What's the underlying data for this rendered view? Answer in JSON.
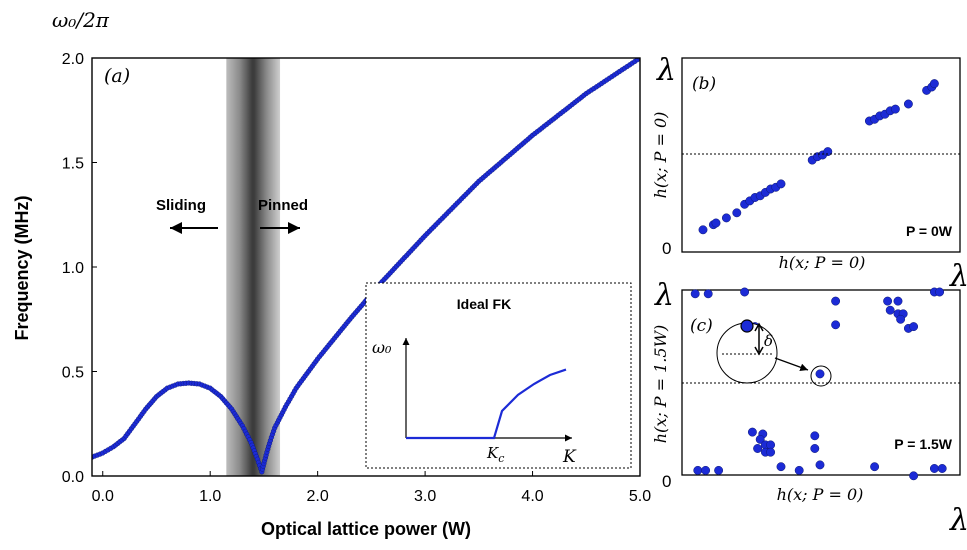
{
  "colors": {
    "data": "#1c2bd6",
    "data_edge": "#0d1870",
    "band_dark": "#3c3c3c",
    "band_light": "#bdbdbd",
    "axis": "#000000"
  },
  "chart_data": [
    {
      "panel": "a",
      "type": "scatter",
      "panel_label": "(a)",
      "xlabel": "Optical lattice power (W)",
      "ylabel": "Frequency (MHz)",
      "ylabel_top": "ω₀/2π",
      "xlim": [
        -0.1,
        5.0
      ],
      "ylim": [
        0.0,
        2.0
      ],
      "xticks": [
        0.0,
        1.0,
        2.0,
        3.0,
        4.0,
        5.0
      ],
      "xtick_labels": [
        "0.0",
        "1.0",
        "2.0",
        "3.0",
        "4.0",
        "5.0"
      ],
      "yticks": [
        0.0,
        0.5,
        1.0,
        1.5,
        2.0
      ],
      "ytick_labels": [
        "0.0",
        "0.5",
        "1.0",
        "1.5",
        "2.0"
      ],
      "grid": false,
      "shaded_band": {
        "x_range": [
          1.15,
          1.65
        ],
        "center": 1.42
      },
      "annotations": {
        "sliding": "Sliding",
        "pinned": "Pinned"
      },
      "curve_points": [
        [
          -0.1,
          0.09
        ],
        [
          0.0,
          0.11
        ],
        [
          0.1,
          0.14
        ],
        [
          0.2,
          0.18
        ],
        [
          0.3,
          0.25
        ],
        [
          0.4,
          0.32
        ],
        [
          0.5,
          0.38
        ],
        [
          0.6,
          0.42
        ],
        [
          0.7,
          0.44
        ],
        [
          0.8,
          0.445
        ],
        [
          0.9,
          0.44
        ],
        [
          1.0,
          0.42
        ],
        [
          1.1,
          0.38
        ],
        [
          1.2,
          0.32
        ],
        [
          1.3,
          0.24
        ],
        [
          1.38,
          0.16
        ],
        [
          1.44,
          0.08
        ],
        [
          1.48,
          0.02
        ],
        [
          1.52,
          0.1
        ],
        [
          1.56,
          0.17
        ],
        [
          1.6,
          0.23
        ],
        [
          1.7,
          0.33
        ],
        [
          1.8,
          0.42
        ],
        [
          2.0,
          0.56
        ],
        [
          2.3,
          0.75
        ],
        [
          2.6,
          0.93
        ],
        [
          3.0,
          1.15
        ],
        [
          3.5,
          1.41
        ],
        [
          4.0,
          1.63
        ],
        [
          4.5,
          1.83
        ],
        [
          5.0,
          2.0
        ]
      ],
      "inset": {
        "title": "Ideal FK",
        "ylabel": "ω₀",
        "xlabel": "K",
        "critical_label": "K_c",
        "kc": 0.55,
        "curve": [
          [
            0.0,
            0.0
          ],
          [
            0.55,
            0.0
          ],
          [
            0.6,
            0.3
          ],
          [
            0.7,
            0.48
          ],
          [
            0.8,
            0.6
          ],
          [
            0.9,
            0.7
          ],
          [
            1.0,
            0.76
          ]
        ]
      }
    },
    {
      "panel": "b",
      "type": "scatter",
      "panel_label": "(b)",
      "xlabel": "h(x; P = 0)",
      "ylabel": "h(x; P = 0)",
      "axis_end_label": "λ",
      "y_tick_zero": "0",
      "power_label": "P = 0W",
      "xlim": [
        0,
        1
      ],
      "ylim": [
        0,
        1
      ],
      "dashed_line_y": 0.5,
      "points": [
        [
          0.05,
          0.06
        ],
        [
          0.09,
          0.09
        ],
        [
          0.1,
          0.1
        ],
        [
          0.14,
          0.13
        ],
        [
          0.18,
          0.16
        ],
        [
          0.21,
          0.21
        ],
        [
          0.23,
          0.23
        ],
        [
          0.25,
          0.25
        ],
        [
          0.27,
          0.26
        ],
        [
          0.29,
          0.28
        ],
        [
          0.31,
          0.3
        ],
        [
          0.33,
          0.31
        ],
        [
          0.35,
          0.33
        ],
        [
          0.47,
          0.47
        ],
        [
          0.49,
          0.49
        ],
        [
          0.51,
          0.5
        ],
        [
          0.53,
          0.52
        ],
        [
          0.69,
          0.7
        ],
        [
          0.71,
          0.71
        ],
        [
          0.73,
          0.73
        ],
        [
          0.75,
          0.74
        ],
        [
          0.77,
          0.76
        ],
        [
          0.79,
          0.77
        ],
        [
          0.84,
          0.8
        ],
        [
          0.91,
          0.88
        ],
        [
          0.93,
          0.9
        ],
        [
          0.94,
          0.92
        ]
      ]
    },
    {
      "panel": "c",
      "type": "scatter",
      "panel_label": "(c)",
      "xlabel": "h(x; P = 0)",
      "ylabel": "h(x; P = 1.5W)",
      "axis_end_label": "λ",
      "y_tick_zero": "0",
      "power_label": "P = 1.5W",
      "delta_label": "δ",
      "xlim": [
        0,
        1
      ],
      "ylim": [
        0,
        1
      ],
      "dashed_line_y": 0.5,
      "points": [
        [
          0.02,
          0.99
        ],
        [
          0.07,
          0.99
        ],
        [
          0.21,
          1.0
        ],
        [
          0.56,
          0.95
        ],
        [
          0.56,
          0.82
        ],
        [
          0.76,
          0.95
        ],
        [
          0.8,
          0.95
        ],
        [
          0.77,
          0.9
        ],
        [
          0.8,
          0.88
        ],
        [
          0.82,
          0.88
        ],
        [
          0.81,
          0.85
        ],
        [
          0.84,
          0.8
        ],
        [
          0.86,
          0.81
        ],
        [
          0.94,
          1.0
        ],
        [
          0.96,
          1.0
        ],
        [
          0.25,
          0.81
        ],
        [
          0.5,
          0.55
        ],
        [
          0.24,
          0.23
        ],
        [
          0.28,
          0.22
        ],
        [
          0.27,
          0.19
        ],
        [
          0.29,
          0.16
        ],
        [
          0.31,
          0.16
        ],
        [
          0.26,
          0.14
        ],
        [
          0.29,
          0.12
        ],
        [
          0.31,
          0.12
        ],
        [
          0.48,
          0.21
        ],
        [
          0.48,
          0.14
        ],
        [
          0.03,
          0.02
        ],
        [
          0.06,
          0.02
        ],
        [
          0.11,
          0.02
        ],
        [
          0.35,
          0.04
        ],
        [
          0.42,
          0.02
        ],
        [
          0.5,
          0.05
        ],
        [
          0.71,
          0.04
        ],
        [
          0.86,
          -0.01
        ],
        [
          0.94,
          0.03
        ],
        [
          0.97,
          0.03
        ]
      ]
    }
  ]
}
